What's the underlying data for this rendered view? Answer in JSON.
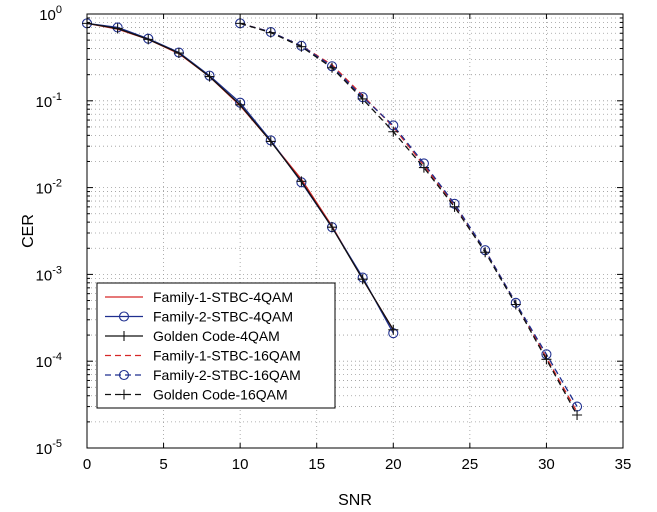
{
  "chart_data": {
    "type": "line",
    "title": "",
    "xlabel": "SNR",
    "ylabel": "CER",
    "xlim": [
      0,
      35
    ],
    "ylim": [
      1e-05,
      1
    ],
    "yscale": "log",
    "grid": true,
    "legend_position": "bottom-left",
    "x_ticks": [
      "0",
      "5",
      "10",
      "15",
      "20",
      "25",
      "30",
      "35"
    ],
    "y_ticks": [
      {
        "base": "10",
        "exp": "0"
      },
      {
        "base": "10",
        "exp": "-1"
      },
      {
        "base": "10",
        "exp": "-2"
      },
      {
        "base": "10",
        "exp": "-3"
      },
      {
        "base": "10",
        "exp": "-4"
      },
      {
        "base": "10",
        "exp": "-5"
      }
    ],
    "series": [
      {
        "name": "Family-1-STBC-4QAM",
        "color": "#d62728",
        "line": "solid",
        "marker": "none",
        "x": [
          0,
          2,
          4,
          6,
          8,
          10,
          12,
          14,
          16,
          18,
          20
        ],
        "y": [
          0.78,
          0.67,
          0.51,
          0.35,
          0.19,
          0.088,
          0.034,
          0.0125,
          0.0036,
          0.00088,
          0.00023
        ]
      },
      {
        "name": "Family-2-STBC-4QAM",
        "color": "#1f2f8f",
        "line": "solid",
        "marker": "circle",
        "x": [
          0,
          2,
          4,
          6,
          8,
          10,
          12,
          14,
          16,
          18,
          20
        ],
        "y": [
          0.78,
          0.7,
          0.52,
          0.36,
          0.195,
          0.095,
          0.035,
          0.0115,
          0.0035,
          0.00092,
          0.00021
        ]
      },
      {
        "name": "Golden Code-4QAM",
        "color": "#111111",
        "line": "solid",
        "marker": "plus",
        "x": [
          0,
          2,
          4,
          6,
          8,
          10,
          12,
          14,
          16,
          18,
          20
        ],
        "y": [
          0.78,
          0.68,
          0.51,
          0.355,
          0.19,
          0.09,
          0.034,
          0.0118,
          0.0035,
          0.00088,
          0.00023
        ]
      },
      {
        "name": "Family-1-STBC-16QAM",
        "color": "#d62728",
        "line": "dashed",
        "marker": "none",
        "x": [
          10,
          12,
          14,
          16,
          18,
          20,
          22,
          24,
          26,
          28,
          30,
          32
        ],
        "y": [
          0.78,
          0.62,
          0.43,
          0.26,
          0.115,
          0.05,
          0.018,
          0.0063,
          0.0019,
          0.00047,
          0.00011,
          2.6e-05
        ]
      },
      {
        "name": "Family-2-STBC-16QAM",
        "color": "#1f2f8f",
        "line": "dashed",
        "marker": "circle",
        "x": [
          10,
          12,
          14,
          16,
          18,
          20,
          22,
          24,
          26,
          28,
          30,
          32
        ],
        "y": [
          0.78,
          0.62,
          0.43,
          0.25,
          0.11,
          0.052,
          0.019,
          0.0065,
          0.0019,
          0.00047,
          0.00012,
          3e-05
        ]
      },
      {
        "name": "Golden Code-16QAM",
        "color": "#111111",
        "line": "dashed",
        "marker": "plus",
        "x": [
          10,
          12,
          14,
          16,
          18,
          20,
          22,
          24,
          26,
          28,
          30,
          32
        ],
        "y": [
          0.78,
          0.61,
          0.42,
          0.24,
          0.105,
          0.044,
          0.017,
          0.006,
          0.0018,
          0.00045,
          0.000105,
          2.4e-05
        ]
      }
    ]
  }
}
